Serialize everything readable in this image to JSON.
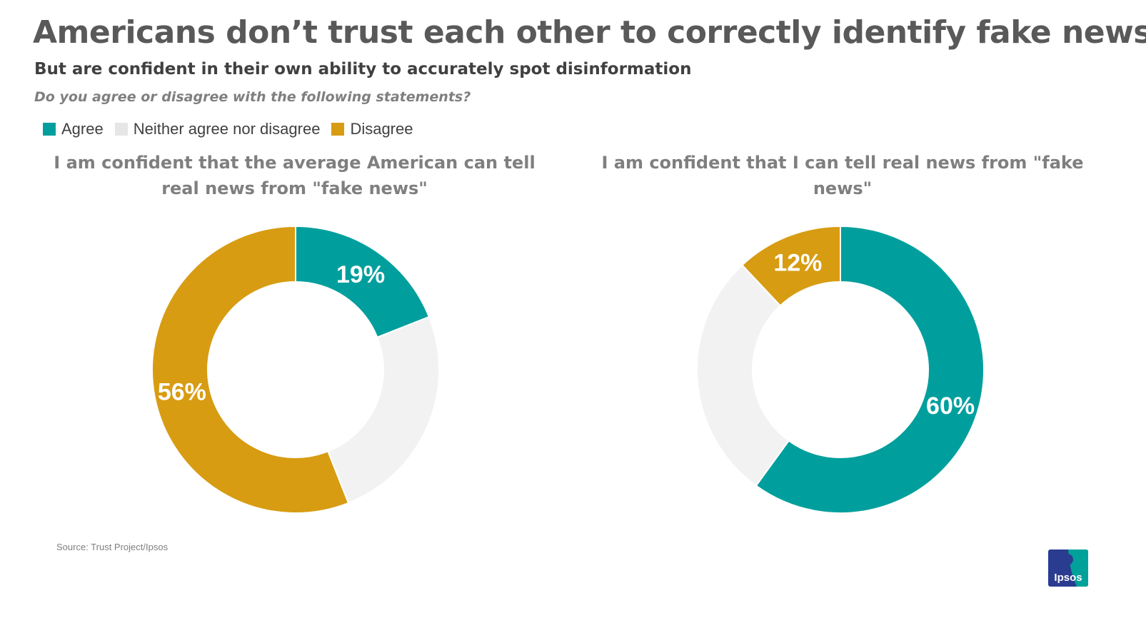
{
  "title": "Americans don’t trust each other to correctly identify fake news",
  "subtitle": "But are confident in their own ability to accurately spot disinformation",
  "question": "Do you agree or disagree with the following statements?",
  "legend": [
    {
      "label": "Agree",
      "color": "#009f9d"
    },
    {
      "label": "Neither agree nor disagree",
      "color": "#e6e6e6"
    },
    {
      "label": "Disagree",
      "color": "#d79c12"
    }
  ],
  "source": "Source: Trust Project/Ipsos",
  "logo_text": "Ipsos",
  "chart_data": [
    {
      "type": "pie",
      "title": "I am confident that the average American can tell real news from \"fake news\"",
      "categories": [
        "Agree",
        "Neither agree nor disagree",
        "Disagree"
      ],
      "values": [
        19,
        25,
        56
      ],
      "data_labels": [
        "19%",
        "",
        "56%"
      ],
      "colors": [
        "#009f9d",
        "#f2f2f2",
        "#d79c12"
      ],
      "donut": true
    },
    {
      "type": "pie",
      "title": "I am confident that I can tell real news from \"fake news\"",
      "categories": [
        "Agree",
        "Neither agree nor disagree",
        "Disagree"
      ],
      "values": [
        60,
        28,
        12
      ],
      "data_labels": [
        "60%",
        "",
        "12%"
      ],
      "colors": [
        "#009f9d",
        "#f2f2f2",
        "#d79c12"
      ],
      "donut": true
    }
  ]
}
